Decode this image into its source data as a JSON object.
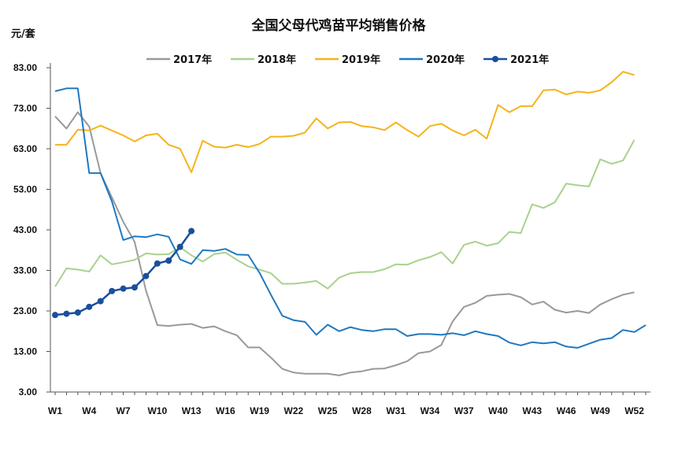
{
  "chart_data": {
    "type": "line",
    "title": "全国父母代鸡苗平均销售价格",
    "ylabel": "元/套",
    "xlabel": "",
    "ylim": [
      3,
      83
    ],
    "yticks": [
      "83.00",
      "73.00",
      "63.00",
      "53.00",
      "43.00",
      "33.00",
      "23.00",
      "13.00",
      "3.00"
    ],
    "ytick_values": [
      83,
      73,
      63,
      53,
      43,
      33,
      23,
      13,
      3
    ],
    "xticks": [
      "W1",
      "W4",
      "W7",
      "W10",
      "W13",
      "W16",
      "W19",
      "W22",
      "W25",
      "W28",
      "W31",
      "W34",
      "W37",
      "W40",
      "W43",
      "W46",
      "W49",
      "W52"
    ],
    "xtick_weeks": [
      1,
      4,
      7,
      10,
      13,
      16,
      19,
      22,
      25,
      28,
      31,
      34,
      37,
      40,
      43,
      46,
      49,
      52
    ],
    "legend_position": "top",
    "grid": false,
    "series": [
      {
        "name": "2017年",
        "color": "#999999",
        "marker": false,
        "values": [
          71,
          68,
          72,
          68.5,
          57,
          51,
          45,
          40,
          28,
          19.5,
          19.3,
          19.6,
          19.8,
          18.8,
          19.2,
          18,
          17,
          14,
          14,
          11.5,
          8.7,
          7.8,
          7.5,
          7.5,
          7.5,
          7.1,
          7.8,
          8.1,
          8.7,
          8.8,
          9.6,
          10.6,
          12.6,
          13,
          14.6,
          20.4,
          24,
          25,
          26.7,
          27,
          27.2,
          26.4,
          24.6,
          25.3,
          23.3,
          22.6,
          23,
          22.5,
          24.6,
          25.9,
          27,
          27.6
        ]
      },
      {
        "name": "2018年",
        "color": "#a9d18e",
        "marker": false,
        "values": [
          29,
          33.5,
          33.2,
          32.7,
          36.7,
          34.5,
          35,
          35.6,
          37.2,
          36.9,
          37,
          38.7,
          36.7,
          35.2,
          37,
          37.4,
          35.6,
          34,
          33.2,
          32.3,
          29.7,
          29.7,
          30,
          30.4,
          28.5,
          31.2,
          32.3,
          32.6,
          32.6,
          33.3,
          34.5,
          34.4,
          35.5,
          36.3,
          37.5,
          34.7,
          39.3,
          40.1,
          39.1,
          39.7,
          42.5,
          42.2,
          49.3,
          48.4,
          49.8,
          54.4,
          54,
          53.7,
          60.4,
          59.3,
          60.1,
          65.2
        ]
      },
      {
        "name": "2019年",
        "color": "#f5b31c",
        "marker": false,
        "values": [
          64,
          64,
          67.7,
          67.5,
          68.7,
          67.5,
          66.3,
          64.8,
          66.3,
          66.7,
          64,
          63,
          57.2,
          65,
          63.5,
          63.3,
          64,
          63.4,
          64.2,
          66,
          66,
          66.2,
          67,
          70.5,
          68,
          69.5,
          69.6,
          68.6,
          68.3,
          67.6,
          69.5,
          67.6,
          66,
          68.6,
          69.2,
          67.5,
          66.3,
          67.7,
          65.5,
          73.8,
          72,
          73.5,
          73.5,
          77.4,
          77.6,
          76.4,
          77.1,
          76.8,
          77.4,
          79.4,
          82,
          81.2
        ]
      },
      {
        "name": "2020年",
        "color": "#1f78c1",
        "marker": false,
        "values": [
          77.2,
          77.9,
          77.9,
          57,
          57,
          50,
          40.5,
          41.4,
          41.2,
          41.9,
          41.3,
          35.7,
          34.6,
          38,
          37.8,
          38.3,
          36.9,
          36.8,
          32.4,
          27,
          21.8,
          20.7,
          20.3,
          17.1,
          19.6,
          18,
          19,
          18.3,
          18,
          18.5,
          18.5,
          16.8,
          17.3,
          17.3,
          17.1,
          17.5,
          17,
          18,
          17.3,
          16.8,
          15.2,
          14.5,
          15.3,
          15,
          15.3,
          14.2,
          13.9,
          14.9,
          15.9,
          16.3,
          18.3,
          17.8,
          19.5
        ]
      },
      {
        "name": "2021年",
        "color": "#1a4f9c",
        "marker": true,
        "values": [
          22,
          22.3,
          22.6,
          24,
          25.4,
          27.9,
          28.5,
          28.8,
          31.6,
          34.7,
          35.4,
          38.8,
          42.7
        ]
      }
    ]
  }
}
